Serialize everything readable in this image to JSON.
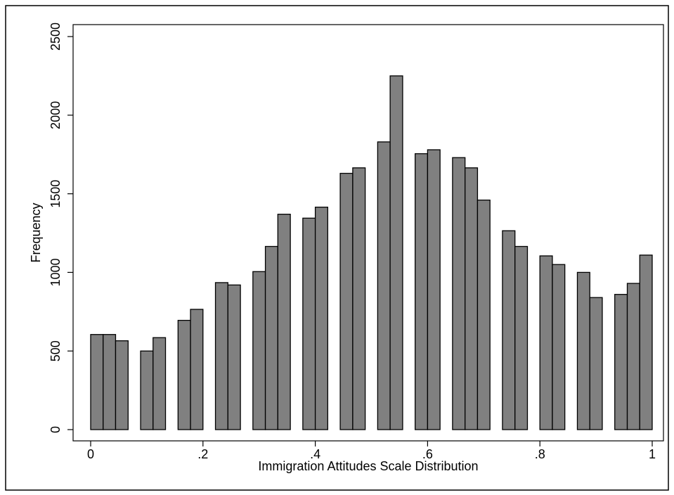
{
  "chart_data": {
    "type": "histogram",
    "x_label": "Immigration Attitudes Scale Distribution",
    "y_label": "Frequency",
    "color": "#808080",
    "edge_color": "#000000",
    "bins": [
      0,
      0.0222,
      0.0444,
      0.0667,
      0.0889,
      0.1111,
      0.1333,
      0.1556,
      0.1778,
      0.2,
      0.2222,
      0.2444,
      0.2667,
      0.2889,
      0.3111,
      0.3333,
      0.3556,
      0.3778,
      0.4,
      0.4222,
      0.4444,
      0.4667,
      0.4889,
      0.5111,
      0.5333,
      0.5556,
      0.5778,
      0.6,
      0.6222,
      0.6444,
      0.6667,
      0.6889,
      0.7111,
      0.7333,
      0.7556,
      0.7778,
      0.8,
      0.8222,
      0.8444,
      0.8667,
      0.8889,
      0.9111,
      0.9333,
      0.9556,
      0.9778,
      1
    ],
    "counts": [
      605,
      605,
      565,
      0,
      500,
      585,
      0,
      695,
      765,
      0,
      935,
      920,
      0,
      1005,
      1165,
      1370,
      0,
      1345,
      1415,
      0,
      1630,
      1665,
      0,
      1830,
      2250,
      0,
      1755,
      1780,
      0,
      1730,
      1665,
      1460,
      0,
      1265,
      1165,
      0,
      1105,
      1050,
      0,
      1000,
      840,
      0,
      860,
      930,
      1110
    ],
    "xlim": [
      0,
      1
    ],
    "xticks": [
      0,
      {
        "value": 0.2,
        "label": ".2"
      },
      {
        "value": 0.4,
        "label": ".4"
      },
      {
        "value": 0.6,
        "label": ".6"
      },
      {
        "value": 0.8,
        "label": ".8"
      },
      1
    ],
    "ylim": [
      0,
      2500
    ],
    "yticks": [
      0,
      500,
      1000,
      1500,
      2000,
      2500
    ],
    "grid": false
  }
}
